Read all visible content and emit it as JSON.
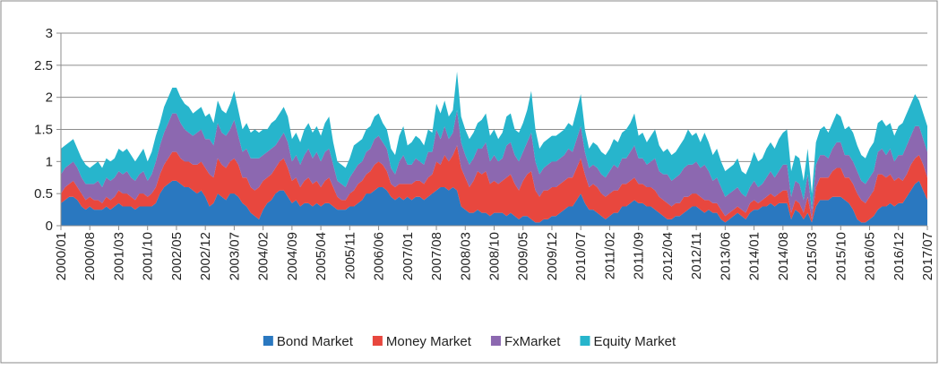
{
  "chart_data": {
    "type": "stacked-area",
    "categories": [
      "2000/01",
      null,
      null,
      null,
      null,
      null,
      null,
      "2000/08",
      null,
      null,
      null,
      null,
      null,
      null,
      "2001/03",
      null,
      null,
      null,
      null,
      null,
      null,
      "2001/10",
      null,
      null,
      null,
      null,
      null,
      null,
      "2002/05",
      null,
      null,
      null,
      null,
      null,
      null,
      "2002/12",
      null,
      null,
      null,
      null,
      null,
      null,
      "2003/07",
      null,
      null,
      null,
      null,
      null,
      null,
      "2004/02",
      null,
      null,
      null,
      null,
      null,
      null,
      "2004/09",
      null,
      null,
      null,
      null,
      null,
      null,
      "2005/04",
      null,
      null,
      null,
      null,
      null,
      null,
      "2005/11",
      null,
      null,
      null,
      null,
      null,
      null,
      "2006/06",
      null,
      null,
      null,
      null,
      null,
      null,
      "2007/01",
      null,
      null,
      null,
      null,
      null,
      null,
      "2007/08",
      null,
      null,
      null,
      null,
      null,
      null,
      "2008/03",
      null,
      null,
      null,
      null,
      null,
      null,
      "2008/10",
      null,
      null,
      null,
      null,
      null,
      null,
      "2009/05",
      null,
      null,
      null,
      null,
      null,
      null,
      "2009/12",
      null,
      null,
      null,
      null,
      null,
      null,
      "2010/07",
      null,
      null,
      null,
      null,
      null,
      null,
      "2011/02",
      null,
      null,
      null,
      null,
      null,
      null,
      "2011/09",
      null,
      null,
      null,
      null,
      null,
      null,
      "2012/04",
      null,
      null,
      null,
      null,
      null,
      null,
      "2012/11",
      null,
      null,
      null,
      null,
      null,
      null,
      "2013/06",
      null,
      null,
      null,
      null,
      null,
      null,
      "2014/01",
      null,
      null,
      null,
      null,
      null,
      null,
      "2014/08",
      null,
      null,
      null,
      null,
      null,
      null,
      "2015/03",
      null,
      null,
      null,
      null,
      null,
      null,
      "2015/10",
      null,
      null,
      null,
      null,
      null,
      null,
      "2016/05",
      null,
      null,
      null,
      null,
      null,
      null,
      "2016/12",
      null,
      null,
      null,
      null,
      null,
      null,
      "2017/07"
    ],
    "series": [
      {
        "name": "Bond Market",
        "color": "#2a78c0",
        "values": [
          0.35,
          0.4,
          0.45,
          0.45,
          0.4,
          0.3,
          0.25,
          0.3,
          0.25,
          0.25,
          0.25,
          0.3,
          0.25,
          0.3,
          0.35,
          0.3,
          0.3,
          0.3,
          0.25,
          0.3,
          0.3,
          0.3,
          0.3,
          0.35,
          0.5,
          0.6,
          0.65,
          0.7,
          0.7,
          0.65,
          0.6,
          0.6,
          0.55,
          0.5,
          0.55,
          0.45,
          0.3,
          0.35,
          0.5,
          0.45,
          0.4,
          0.5,
          0.5,
          0.45,
          0.35,
          0.3,
          0.2,
          0.15,
          0.1,
          0.25,
          0.35,
          0.4,
          0.5,
          0.55,
          0.55,
          0.45,
          0.35,
          0.4,
          0.3,
          0.35,
          0.35,
          0.3,
          0.35,
          0.3,
          0.35,
          0.35,
          0.3,
          0.25,
          0.25,
          0.25,
          0.3,
          0.3,
          0.35,
          0.4,
          0.5,
          0.5,
          0.55,
          0.6,
          0.6,
          0.55,
          0.45,
          0.4,
          0.45,
          0.4,
          0.45,
          0.4,
          0.45,
          0.45,
          0.4,
          0.45,
          0.5,
          0.55,
          0.6,
          0.6,
          0.55,
          0.6,
          0.55,
          0.3,
          0.25,
          0.2,
          0.2,
          0.25,
          0.2,
          0.2,
          0.15,
          0.2,
          0.2,
          0.2,
          0.15,
          0.2,
          0.15,
          0.1,
          0.15,
          0.15,
          0.1,
          0.05,
          0.05,
          0.1,
          0.1,
          0.15,
          0.15,
          0.2,
          0.25,
          0.3,
          0.3,
          0.4,
          0.5,
          0.35,
          0.25,
          0.25,
          0.2,
          0.15,
          0.1,
          0.15,
          0.2,
          0.2,
          0.3,
          0.3,
          0.35,
          0.4,
          0.35,
          0.35,
          0.3,
          0.3,
          0.25,
          0.2,
          0.15,
          0.1,
          0.1,
          0.15,
          0.15,
          0.2,
          0.25,
          0.3,
          0.3,
          0.25,
          0.2,
          0.25,
          0.2,
          0.2,
          0.1,
          0.05,
          0.1,
          0.15,
          0.2,
          0.15,
          0.1,
          0.2,
          0.25,
          0.25,
          0.3,
          0.3,
          0.35,
          0.3,
          0.35,
          0.35,
          0.35,
          0.1,
          0.25,
          0.2,
          0.1,
          0.2,
          0.05,
          0.3,
          0.4,
          0.4,
          0.4,
          0.45,
          0.45,
          0.45,
          0.4,
          0.35,
          0.25,
          0.1,
          0.05,
          0.05,
          0.1,
          0.15,
          0.25,
          0.3,
          0.3,
          0.35,
          0.3,
          0.35,
          0.35,
          0.45,
          0.55,
          0.65,
          0.7,
          0.55,
          0.4
        ]
      },
      {
        "name": "Money Market",
        "color": "#e8473e",
        "values": [
          0.15,
          0.2,
          0.2,
          0.25,
          0.2,
          0.2,
          0.15,
          0.15,
          0.15,
          0.15,
          0.1,
          0.15,
          0.15,
          0.15,
          0.2,
          0.2,
          0.2,
          0.15,
          0.15,
          0.2,
          0.2,
          0.15,
          0.2,
          0.25,
          0.3,
          0.35,
          0.4,
          0.45,
          0.45,
          0.4,
          0.4,
          0.4,
          0.4,
          0.45,
          0.45,
          0.45,
          0.5,
          0.4,
          0.55,
          0.5,
          0.5,
          0.5,
          0.55,
          0.5,
          0.4,
          0.45,
          0.4,
          0.4,
          0.5,
          0.45,
          0.4,
          0.4,
          0.4,
          0.45,
          0.5,
          0.45,
          0.35,
          0.35,
          0.3,
          0.35,
          0.4,
          0.35,
          0.35,
          0.3,
          0.35,
          0.4,
          0.3,
          0.2,
          0.15,
          0.15,
          0.2,
          0.25,
          0.3,
          0.3,
          0.3,
          0.35,
          0.4,
          0.4,
          0.35,
          0.3,
          0.2,
          0.2,
          0.2,
          0.25,
          0.2,
          0.25,
          0.25,
          0.25,
          0.25,
          0.3,
          0.3,
          0.45,
          0.35,
          0.5,
          0.45,
          0.5,
          0.7,
          0.6,
          0.5,
          0.4,
          0.5,
          0.6,
          0.6,
          0.65,
          0.5,
          0.5,
          0.45,
          0.5,
          0.6,
          0.6,
          0.5,
          0.45,
          0.55,
          0.65,
          0.75,
          0.5,
          0.4,
          0.45,
          0.45,
          0.45,
          0.45,
          0.45,
          0.45,
          0.45,
          0.45,
          0.5,
          0.55,
          0.45,
          0.35,
          0.4,
          0.4,
          0.35,
          0.35,
          0.35,
          0.35,
          0.35,
          0.35,
          0.35,
          0.35,
          0.35,
          0.3,
          0.3,
          0.3,
          0.3,
          0.3,
          0.25,
          0.25,
          0.25,
          0.2,
          0.2,
          0.2,
          0.25,
          0.2,
          0.2,
          0.2,
          0.2,
          0.2,
          0.15,
          0.15,
          0.15,
          0.15,
          0.1,
          0.1,
          0.1,
          0.1,
          0.1,
          0.1,
          0.15,
          0.15,
          0.1,
          0.1,
          0.15,
          0.15,
          0.15,
          0.15,
          0.2,
          0.2,
          0.1,
          0.15,
          0.15,
          0.1,
          0.25,
          0.05,
          0.3,
          0.35,
          0.35,
          0.35,
          0.4,
          0.45,
          0.45,
          0.35,
          0.4,
          0.4,
          0.4,
          0.35,
          0.3,
          0.35,
          0.4,
          0.55,
          0.5,
          0.45,
          0.45,
          0.4,
          0.4,
          0.35,
          0.35,
          0.4,
          0.4,
          0.4,
          0.4,
          0.35
        ]
      },
      {
        "name": "FxMarket",
        "color": "#8c68b0",
        "values": [
          0.3,
          0.3,
          0.3,
          0.3,
          0.3,
          0.25,
          0.25,
          0.2,
          0.25,
          0.3,
          0.25,
          0.3,
          0.3,
          0.3,
          0.3,
          0.3,
          0.35,
          0.3,
          0.3,
          0.3,
          0.35,
          0.25,
          0.3,
          0.4,
          0.45,
          0.5,
          0.55,
          0.6,
          0.6,
          0.55,
          0.5,
          0.45,
          0.45,
          0.5,
          0.5,
          0.45,
          0.55,
          0.5,
          0.55,
          0.5,
          0.5,
          0.5,
          0.6,
          0.45,
          0.4,
          0.45,
          0.45,
          0.5,
          0.45,
          0.4,
          0.4,
          0.4,
          0.35,
          0.35,
          0.4,
          0.4,
          0.3,
          0.35,
          0.35,
          0.4,
          0.45,
          0.4,
          0.45,
          0.4,
          0.45,
          0.45,
          0.35,
          0.25,
          0.25,
          0.2,
          0.25,
          0.3,
          0.3,
          0.3,
          0.35,
          0.35,
          0.4,
          0.4,
          0.35,
          0.35,
          0.25,
          0.2,
          0.35,
          0.45,
          0.3,
          0.3,
          0.35,
          0.3,
          0.3,
          0.4,
          0.35,
          0.5,
          0.4,
          0.45,
          0.35,
          0.35,
          0.55,
          0.4,
          0.35,
          0.35,
          0.35,
          0.35,
          0.4,
          0.45,
          0.35,
          0.4,
          0.35,
          0.35,
          0.5,
          0.5,
          0.45,
          0.45,
          0.45,
          0.5,
          0.6,
          0.45,
          0.35,
          0.35,
          0.4,
          0.4,
          0.4,
          0.4,
          0.4,
          0.45,
          0.4,
          0.45,
          0.5,
          0.35,
          0.3,
          0.3,
          0.3,
          0.3,
          0.3,
          0.35,
          0.4,
          0.35,
          0.4,
          0.4,
          0.45,
          0.5,
          0.4,
          0.4,
          0.35,
          0.4,
          0.5,
          0.4,
          0.4,
          0.45,
          0.4,
          0.4,
          0.45,
          0.45,
          0.5,
          0.45,
          0.5,
          0.45,
          0.55,
          0.45,
          0.35,
          0.4,
          0.35,
          0.3,
          0.3,
          0.3,
          0.3,
          0.25,
          0.25,
          0.25,
          0.3,
          0.25,
          0.25,
          0.3,
          0.35,
          0.3,
          0.35,
          0.4,
          0.4,
          0.25,
          0.3,
          0.3,
          0.2,
          0.35,
          0.15,
          0.35,
          0.35,
          0.35,
          0.3,
          0.35,
          0.4,
          0.4,
          0.35,
          0.35,
          0.35,
          0.35,
          0.3,
          0.3,
          0.3,
          0.3,
          0.35,
          0.4,
          0.35,
          0.4,
          0.3,
          0.35,
          0.4,
          0.45,
          0.45,
          0.5,
          0.45,
          0.4,
          0.4
        ]
      },
      {
        "name": "Equity Market",
        "color": "#27b5cc",
        "values": [
          0.4,
          0.35,
          0.35,
          0.35,
          0.3,
          0.3,
          0.3,
          0.25,
          0.3,
          0.3,
          0.3,
          0.3,
          0.3,
          0.3,
          0.35,
          0.35,
          0.35,
          0.35,
          0.3,
          0.3,
          0.35,
          0.3,
          0.35,
          0.4,
          0.35,
          0.4,
          0.4,
          0.4,
          0.4,
          0.4,
          0.4,
          0.4,
          0.35,
          0.35,
          0.35,
          0.35,
          0.4,
          0.35,
          0.35,
          0.35,
          0.35,
          0.4,
          0.45,
          0.4,
          0.35,
          0.4,
          0.4,
          0.45,
          0.4,
          0.4,
          0.35,
          0.4,
          0.4,
          0.4,
          0.4,
          0.4,
          0.35,
          0.35,
          0.35,
          0.4,
          0.4,
          0.4,
          0.4,
          0.4,
          0.45,
          0.5,
          0.35,
          0.3,
          0.3,
          0.3,
          0.3,
          0.4,
          0.35,
          0.35,
          0.35,
          0.35,
          0.35,
          0.35,
          0.3,
          0.3,
          0.3,
          0.3,
          0.4,
          0.45,
          0.3,
          0.35,
          0.35,
          0.35,
          0.3,
          0.35,
          0.3,
          0.4,
          0.4,
          0.4,
          0.35,
          0.35,
          0.6,
          0.4,
          0.4,
          0.4,
          0.4,
          0.4,
          0.45,
          0.45,
          0.4,
          0.4,
          0.35,
          0.4,
          0.45,
          0.45,
          0.4,
          0.45,
          0.45,
          0.5,
          0.65,
          0.5,
          0.4,
          0.4,
          0.4,
          0.4,
          0.4,
          0.4,
          0.4,
          0.4,
          0.4,
          0.45,
          0.5,
          0.35,
          0.3,
          0.35,
          0.35,
          0.35,
          0.35,
          0.35,
          0.4,
          0.4,
          0.4,
          0.45,
          0.45,
          0.5,
          0.35,
          0.4,
          0.35,
          0.4,
          0.45,
          0.4,
          0.35,
          0.4,
          0.4,
          0.4,
          0.45,
          0.45,
          0.55,
          0.45,
          0.45,
          0.4,
          0.5,
          0.45,
          0.4,
          0.45,
          0.4,
          0.4,
          0.4,
          0.4,
          0.45,
          0.35,
          0.35,
          0.35,
          0.45,
          0.4,
          0.4,
          0.45,
          0.45,
          0.45,
          0.5,
          0.5,
          0.55,
          0.4,
          0.4,
          0.4,
          0.3,
          0.4,
          0.25,
          0.35,
          0.4,
          0.45,
          0.4,
          0.4,
          0.45,
          0.4,
          0.4,
          0.45,
          0.45,
          0.4,
          0.4,
          0.4,
          0.45,
          0.45,
          0.45,
          0.45,
          0.45,
          0.4,
          0.4,
          0.45,
          0.5,
          0.5,
          0.5,
          0.5,
          0.4,
          0.4,
          0.4
        ]
      }
    ],
    "ylim": [
      0,
      3
    ],
    "yticks": [
      0,
      0.5,
      1,
      1.5,
      2,
      2.5,
      3
    ],
    "grid": true,
    "legend": "bottom"
  }
}
